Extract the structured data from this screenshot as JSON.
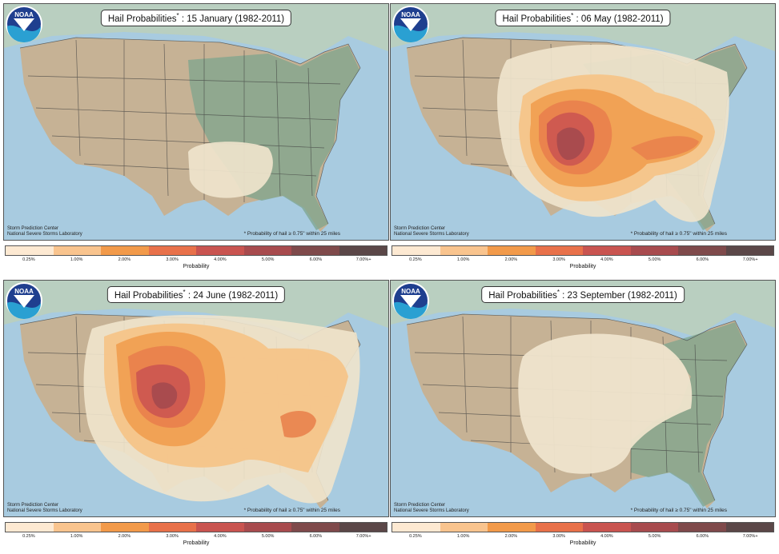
{
  "panels": [
    {
      "id": "jan",
      "title": "Hail Probabilities",
      "star": "*",
      "date": ": 15 January (1982-2011)",
      "credit_line1": "Storm Prediction Center",
      "credit_line2": "National Severe Storms Laboratory",
      "footnote": "* Probability of hail ≥ 0.75\" within 25 miles",
      "logo_text": "NOAA"
    },
    {
      "id": "may",
      "title": "Hail Probabilities",
      "star": "*",
      "date": ": 06 May (1982-2011)",
      "credit_line1": "Storm Prediction Center",
      "credit_line2": "National Severe Storms Laboratory",
      "footnote": "* Probability of hail ≥ 0.75\" within 25 miles",
      "logo_text": "NOAA"
    },
    {
      "id": "jun",
      "title": "Hail Probabilities",
      "star": "*",
      "date": ": 24 June (1982-2011)",
      "credit_line1": "Storm Prediction Center",
      "credit_line2": "National Severe Storms Laboratory",
      "footnote": "* Probability of hail ≥ 0.75\" within 25 miles",
      "logo_text": "NOAA"
    },
    {
      "id": "sep",
      "title": "Hail Probabilities",
      "star": "*",
      "date": ": 23 September (1982-2011)",
      "credit_line1": "Storm Prediction Center",
      "credit_line2": "National Severe Storms Laboratory",
      "footnote": "* Probability of hail ≥ 0.75\" within 25 miles",
      "logo_text": "NOAA"
    }
  ],
  "legend": {
    "label": "Probability",
    "ticks": [
      "0.25%",
      "1.00%",
      "2.00%",
      "3.00%",
      "4.00%",
      "5.00%",
      "6.00%",
      "7.00%+"
    ],
    "colors": [
      "#fde9d2",
      "#f9c48e",
      "#f29a4a",
      "#e8714a",
      "#c95450",
      "#a84b4e",
      "#7f4a4b",
      "#5b4748"
    ]
  },
  "colors": {
    "ocean": "#9cc4dd",
    "land": "#c9b89a",
    "forest": "#7aa08c",
    "canada": "#a9c2b2"
  }
}
